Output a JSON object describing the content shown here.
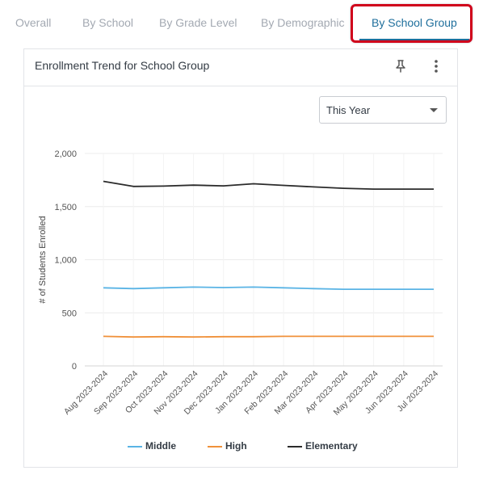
{
  "tabs": [
    {
      "label": "Overall",
      "active": false
    },
    {
      "label": "By School",
      "active": false
    },
    {
      "label": "By Grade Level",
      "active": false
    },
    {
      "label": "By Demographic",
      "active": false
    },
    {
      "label": "By School Group",
      "active": true
    }
  ],
  "card": {
    "title": "Enrollment Trend for School Group",
    "icons": [
      "pin-icon",
      "more-vertical-icon"
    ]
  },
  "period_select": {
    "value": "This Year"
  },
  "colors": {
    "accent": "#1f6f9c",
    "highlight": "#d0021b",
    "middle": "#5ab4e5",
    "high": "#f0913a",
    "elementary": "#2b2b2b"
  },
  "chart_data": {
    "type": "line",
    "title": "",
    "xlabel": "",
    "ylabel": "# of Students Enrolled",
    "ylim": [
      0,
      2000
    ],
    "yticks": [
      "0",
      "500",
      "1,000",
      "1,500",
      "2,000"
    ],
    "ytick_values": [
      0,
      500,
      1000,
      1500,
      2000
    ],
    "categories": [
      "Aug 2023-2024",
      "Sep 2023-2024",
      "Oct 2023-2024",
      "Nov 2023-2024",
      "Dec 2023-2024",
      "Jan 2023-2024",
      "Feb 2023-2024",
      "Mar 2023-2024",
      "Apr 2023-2024",
      "May 2023-2024",
      "Jun 2023-2024",
      "Jul 2023-2024"
    ],
    "grid": true,
    "legend_position": "bottom",
    "series": [
      {
        "name": "Middle",
        "color": "#5ab4e5",
        "values": [
          735,
          728,
          735,
          742,
          738,
          742,
          735,
          728,
          722,
          722,
          722,
          722
        ]
      },
      {
        "name": "High",
        "color": "#f0913a",
        "values": [
          278,
          272,
          275,
          272,
          275,
          275,
          278,
          278,
          278,
          278,
          278,
          278
        ]
      },
      {
        "name": "Elementary",
        "color": "#2b2b2b",
        "values": [
          1738,
          1690,
          1693,
          1702,
          1695,
          1715,
          1700,
          1685,
          1672,
          1665,
          1665,
          1665
        ]
      }
    ]
  }
}
